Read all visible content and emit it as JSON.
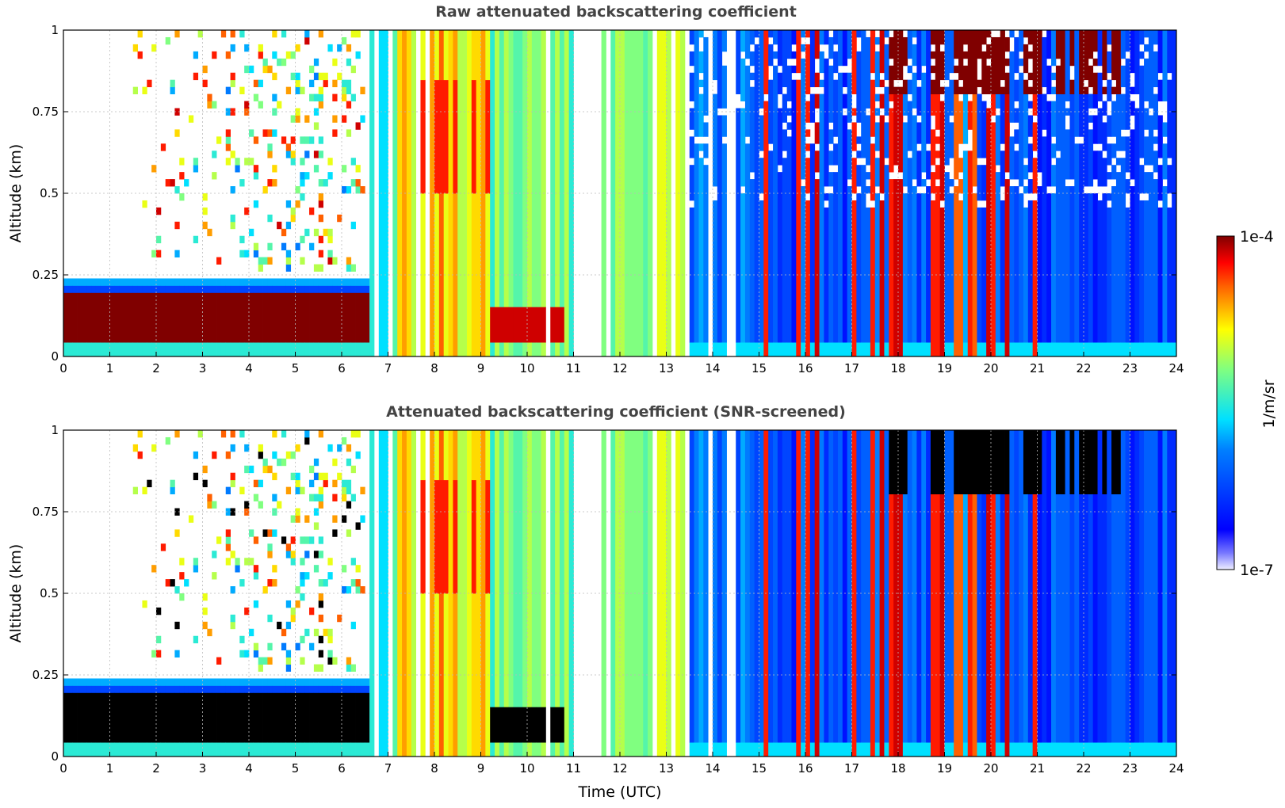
{
  "chart_data": [
    {
      "type": "heatmap",
      "title": "Raw attenuated backscattering coefficient",
      "xlabel": "",
      "ylabel": "Altitude (km)",
      "xlim": [
        0,
        24
      ],
      "ylim": [
        0,
        1
      ],
      "x_ticks": [
        "0",
        "1",
        "2",
        "3",
        "4",
        "5",
        "6",
        "7",
        "8",
        "9",
        "10",
        "11",
        "12",
        "13",
        "14",
        "15",
        "16",
        "17",
        "18",
        "19",
        "20",
        "21",
        "22",
        "23",
        "24"
      ],
      "y_ticks": [
        "0",
        "0.25",
        "0.5",
        "0.75",
        "1"
      ],
      "grid": true,
      "screened": false
    },
    {
      "type": "heatmap",
      "title": "Attenuated backscattering coefficient (SNR-screened)",
      "xlabel": "Time (UTC)",
      "ylabel": "Altitude (km)",
      "xlim": [
        0,
        24
      ],
      "ylim": [
        0,
        1
      ],
      "x_ticks": [
        "0",
        "1",
        "2",
        "3",
        "4",
        "5",
        "6",
        "7",
        "8",
        "9",
        "10",
        "11",
        "12",
        "13",
        "14",
        "15",
        "16",
        "17",
        "18",
        "19",
        "20",
        "21",
        "22",
        "23",
        "24"
      ],
      "y_ticks": [
        "0",
        "0.25",
        "0.5",
        "0.75",
        "1"
      ],
      "grid": true,
      "screened": true
    }
  ],
  "colorbar": {
    "label": "1/m/sr",
    "max_label": "1e-4",
    "min_label": "1e-7",
    "colormap": "jet"
  }
}
